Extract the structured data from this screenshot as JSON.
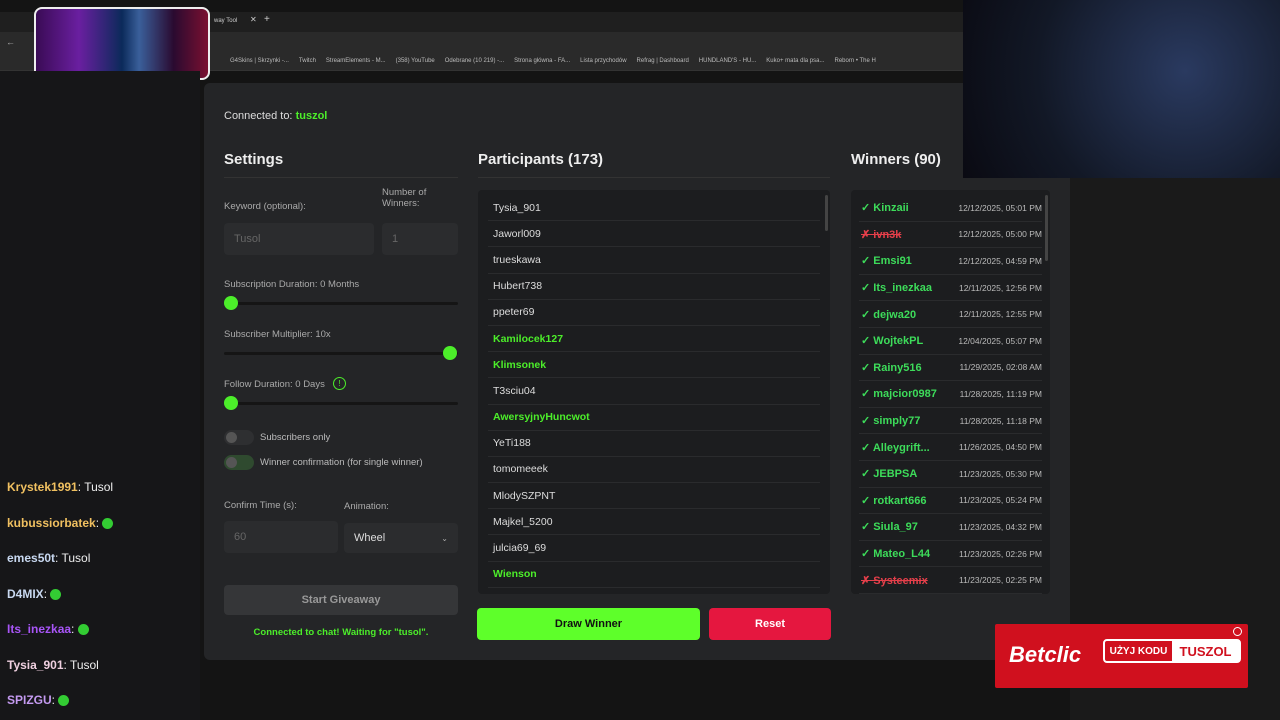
{
  "browser": {
    "tab_title": "way Tool",
    "bookmarks": [
      "G4Skins | Skrzynki -...",
      "Twitch",
      "StreamElements - M...",
      "(358) YouTube",
      "Odebrane (10 219) -...",
      "Strona główna - FA...",
      "Lista przychodów",
      "Refrag | Dashboard",
      "HUNDLAND'S - HU...",
      "Kuko+ mata dla psa...",
      "Reborn • The H"
    ]
  },
  "chat": [
    {
      "user": "Krystek1991",
      "color": "#f0c060",
      "msg": "Tusol"
    },
    {
      "user": "kubussiorbatek",
      "color": "#f0c060",
      "msg": "",
      "emote": true
    },
    {
      "user": "emes50t",
      "color": "#c8d8f0",
      "msg": "Tusol"
    },
    {
      "user": "D4MIX",
      "color": "#c8d8f0",
      "msg": "",
      "emote": true
    },
    {
      "user": "Its_inezkaa",
      "color": "#a855f7",
      "msg": "",
      "emote": true
    },
    {
      "user": "Tysia_901",
      "color": "#f0d0e0",
      "msg": "Tusol"
    },
    {
      "user": "SPIZGU",
      "color": "#c49af0",
      "msg": "",
      "emote": true
    }
  ],
  "app": {
    "connected_label": "Connected to:",
    "connected_channel": "tuszol",
    "settings": {
      "title": "Settings",
      "keyword_label": "Keyword (optional):",
      "keyword_value": "Tusol",
      "winners_label": "Number of Winners:",
      "winners_value": "1",
      "sub_duration_label": "Subscription Duration: 0 Months",
      "sub_duration_value": 0,
      "multiplier_label": "Subscriber Multiplier: 10x",
      "multiplier_value": 10,
      "follow_label": "Follow Duration: 0 Days",
      "follow_value": 0,
      "subs_only_label": "Subscribers only",
      "subs_only": false,
      "confirm_label": "Winner confirmation (for single winner)",
      "confirm": true,
      "confirm_time_label": "Confirm Time (s):",
      "confirm_time_value": "60",
      "animation_label": "Animation:",
      "animation_value": "Wheel",
      "start_label": "Start Giveaway",
      "status": "Connected to chat! Waiting for \"tusol\"."
    },
    "participants": {
      "title": "Participants (173)",
      "items": [
        {
          "n": "Tysia_901",
          "g": false
        },
        {
          "n": "Jaworl009",
          "g": false
        },
        {
          "n": "trueskawa",
          "g": false
        },
        {
          "n": "Hubert738",
          "g": false
        },
        {
          "n": "ppeter69",
          "g": false
        },
        {
          "n": "Kamilocek127",
          "g": true
        },
        {
          "n": "Klimsonek",
          "g": true
        },
        {
          "n": "T3sciu04",
          "g": false
        },
        {
          "n": "AwersyjnyHuncwot",
          "g": true
        },
        {
          "n": "YeTi188",
          "g": false
        },
        {
          "n": "tomomeeek",
          "g": false
        },
        {
          "n": "MlodySZPNT",
          "g": false
        },
        {
          "n": "Majkel_5200",
          "g": false
        },
        {
          "n": "julcia69_69",
          "g": false
        },
        {
          "n": "Wienson",
          "g": true
        }
      ],
      "draw_label": "Draw Winner",
      "reset_label": "Reset"
    },
    "winners": {
      "title": "Winners (90)",
      "items": [
        {
          "n": "✓ Kinzaii",
          "d": "12/12/2025, 05:01 PM",
          "x": false
        },
        {
          "n": "✗ ivn3k",
          "d": "12/12/2025, 05:00 PM",
          "x": true
        },
        {
          "n": "✓ Emsi91",
          "d": "12/12/2025, 04:59 PM",
          "x": false
        },
        {
          "n": "✓ Its_inezkaa",
          "d": "12/11/2025, 12:56 PM",
          "x": false
        },
        {
          "n": "✓ dejwa20",
          "d": "12/11/2025, 12:55 PM",
          "x": false
        },
        {
          "n": "✓ WojtekPL",
          "d": "12/04/2025, 05:07 PM",
          "x": false
        },
        {
          "n": "✓ Rainy516",
          "d": "11/29/2025, 02:08 AM",
          "x": false
        },
        {
          "n": "✓ majcior0987",
          "d": "11/28/2025, 11:19 PM",
          "x": false
        },
        {
          "n": "✓ simply77",
          "d": "11/28/2025, 11:18 PM",
          "x": false
        },
        {
          "n": "✓ Alleygrift...",
          "d": "11/26/2025, 04:50 PM",
          "x": false
        },
        {
          "n": "✓ JEBPSA",
          "d": "11/23/2025, 05:30 PM",
          "x": false
        },
        {
          "n": "✓ rotkart666",
          "d": "11/23/2025, 05:24 PM",
          "x": false
        },
        {
          "n": "✓ Siula_97",
          "d": "11/23/2025, 04:32 PM",
          "x": false
        },
        {
          "n": "✓ Mateo_L44",
          "d": "11/23/2025, 02:26 PM",
          "x": false
        },
        {
          "n": "✗ Systeemix",
          "d": "11/23/2025, 02:25 PM",
          "x": true
        }
      ]
    }
  },
  "ad": {
    "brand": "Betclic",
    "cta": "UŻYJ KODU",
    "code": "TUSZOL"
  },
  "colors": {
    "accent": "#4cee2a",
    "reset": "#e5173f",
    "panel": "#242527"
  }
}
